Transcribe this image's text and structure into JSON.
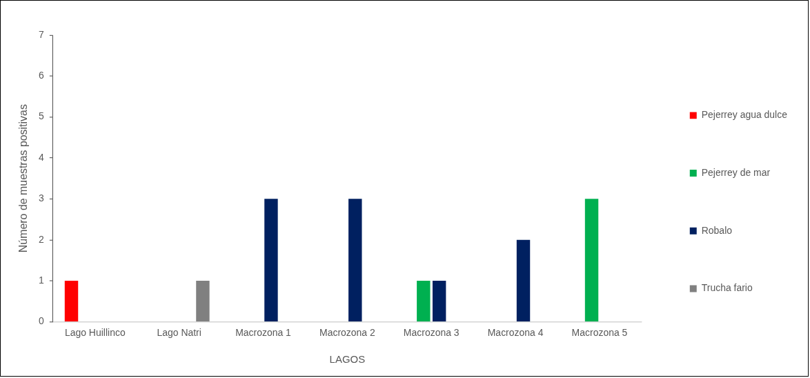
{
  "chart_data": {
    "type": "bar",
    "xlabel": "LAGOS",
    "ylabel": "Número de muestras positivas",
    "categories": [
      "Lago Huillinco",
      "Lago Natri",
      "Macrozona 1",
      "Macrozona 2",
      "Macrozona 3",
      "Macrozona 4",
      "Macrozona 5"
    ],
    "series": [
      {
        "name": "Pejerrey agua dulce",
        "color": "#ff0000",
        "values": [
          1,
          0,
          0,
          0,
          0,
          0,
          0
        ]
      },
      {
        "name": "Pejerrey de mar",
        "color": "#00b050",
        "values": [
          0,
          0,
          0,
          0,
          1,
          0,
          3
        ]
      },
      {
        "name": "Robalo",
        "color": "#002060",
        "values": [
          0,
          0,
          3,
          3,
          1,
          2,
          0
        ]
      },
      {
        "name": "Trucha fario",
        "color": "#808080",
        "values": [
          0,
          1,
          0,
          0,
          0,
          0,
          0
        ]
      }
    ],
    "ylim": [
      0,
      7
    ],
    "yticks": [
      0,
      1,
      2,
      3,
      4,
      5,
      6,
      7
    ],
    "grid": false,
    "legend": "right"
  }
}
